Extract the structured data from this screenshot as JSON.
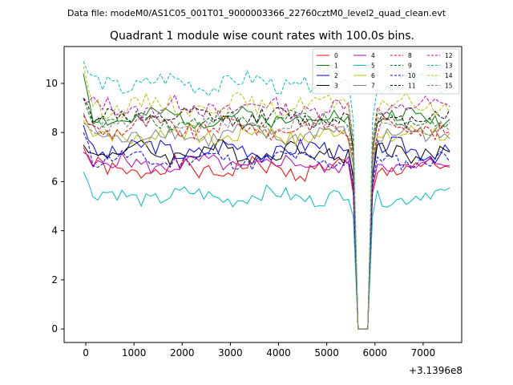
{
  "header": {
    "data_file": "Data file: modeM0/AS1C05_001T01_9000003366_22760cztM0_level2_quad_clean.evt"
  },
  "chart_data": {
    "type": "line",
    "title": "Quadrant 1 module wise count rates with 100.0s bins.",
    "xlabel": "",
    "ylabel": "",
    "x_offset_label": "+3.1396e8",
    "xlim": [
      -450,
      7800
    ],
    "ylim": [
      -0.55,
      11.5
    ],
    "xticks": [
      0,
      1000,
      2000,
      3000,
      4000,
      5000,
      6000,
      7000
    ],
    "xtick_labels": [
      "0",
      "1000",
      "2000",
      "3000",
      "4000",
      "5000",
      "6000",
      "7000"
    ],
    "yticks": [
      0,
      2,
      4,
      6,
      8,
      10
    ],
    "ytick_labels": [
      "0",
      "2",
      "4",
      "6",
      "8",
      "10"
    ],
    "x_start": -50,
    "x_step": 100,
    "n_points": 77,
    "dropout_indices": [
      57,
      58,
      59
    ],
    "legend_position": "top-right",
    "series": [
      {
        "name": "0",
        "color": "#ff0000",
        "dash": "solid",
        "base": 6.5,
        "start": 7.4,
        "amp": 0.35,
        "seed": 1
      },
      {
        "name": "1",
        "color": "#008000",
        "dash": "solid",
        "base": 8.6,
        "start": 10.4,
        "amp": 0.3,
        "seed": 2
      },
      {
        "name": "2",
        "color": "#0000ff",
        "dash": "solid",
        "base": 7.3,
        "start": 8.3,
        "amp": 0.35,
        "seed": 3
      },
      {
        "name": "3",
        "color": "#000000",
        "dash": "solid",
        "base": 7.2,
        "start": 7.5,
        "amp": 0.35,
        "seed": 4
      },
      {
        "name": "4",
        "color": "#bf00bf",
        "dash": "solid",
        "base": 6.7,
        "start": 7.2,
        "amp": 0.3,
        "seed": 5
      },
      {
        "name": "5",
        "color": "#00bfbf",
        "dash": "solid",
        "base": 5.4,
        "start": 6.4,
        "amp": 0.3,
        "seed": 6
      },
      {
        "name": "6",
        "color": "#bfbf00",
        "dash": "solid",
        "base": 7.9,
        "start": 8.5,
        "amp": 0.35,
        "seed": 7
      },
      {
        "name": "7",
        "color": "#808080",
        "dash": "solid",
        "base": 7.9,
        "start": 8.8,
        "amp": 0.35,
        "seed": 8
      },
      {
        "name": "8",
        "color": "#ff0000",
        "dash": "dashed",
        "base": 8.2,
        "start": 8.7,
        "amp": 0.35,
        "seed": 9
      },
      {
        "name": "9",
        "color": "#008000",
        "dash": "dashed",
        "base": 8.5,
        "start": 9.4,
        "amp": 0.3,
        "seed": 10
      },
      {
        "name": "10",
        "color": "#0000ff",
        "dash": "dashed",
        "base": 6.9,
        "start": 8.0,
        "amp": 0.3,
        "seed": 11
      },
      {
        "name": "11",
        "color": "#000000",
        "dash": "dashed",
        "base": 8.6,
        "start": 9.4,
        "amp": 0.3,
        "seed": 12
      },
      {
        "name": "12",
        "color": "#bf00bf",
        "dash": "dashed",
        "base": 9.0,
        "start": 9.4,
        "amp": 0.35,
        "seed": 13
      },
      {
        "name": "13",
        "color": "#00bfbf",
        "dash": "dashed",
        "base": 10.0,
        "start": 10.9,
        "amp": 0.35,
        "seed": 14
      },
      {
        "name": "14",
        "color": "#bfbf00",
        "dash": "dashed",
        "base": 9.1,
        "start": 10.7,
        "amp": 0.35,
        "seed": 15
      },
      {
        "name": "15",
        "color": "#808080",
        "dash": "dashed",
        "base": 8.3,
        "start": 8.4,
        "amp": 0.3,
        "seed": 16
      }
    ]
  }
}
